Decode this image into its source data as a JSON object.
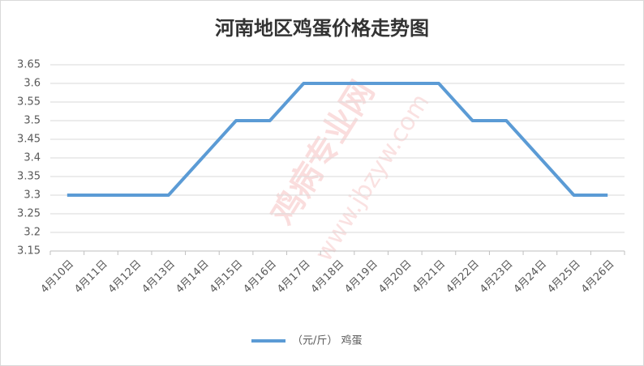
{
  "chart_data": {
    "type": "line",
    "title": "河南地区鸡蛋价格走势图",
    "watermark": [
      "鸡病专业网",
      "www.jbzyw.com"
    ],
    "categories": [
      "4月10日",
      "4月11日",
      "4月12日",
      "4月13日",
      "4月14日",
      "4月15日",
      "4月16日",
      "4月17日",
      "4月18日",
      "4月19日",
      "4月20日",
      "4月21日",
      "4月22日",
      "4月23日",
      "4月24日",
      "4月25日",
      "4月26日"
    ],
    "series": [
      {
        "name": "（元/斤） 鸡蛋",
        "color": "#5b9bd5",
        "values": [
          3.3,
          3.3,
          3.3,
          3.3,
          3.4,
          3.5,
          3.5,
          3.6,
          3.6,
          3.6,
          3.6,
          3.6,
          3.5,
          3.5,
          3.4,
          3.3,
          3.3
        ]
      }
    ],
    "ylim": [
      3.15,
      3.65
    ],
    "yticks": [
      3.15,
      3.2,
      3.25,
      3.3,
      3.35,
      3.4,
      3.45,
      3.5,
      3.55,
      3.6,
      3.65
    ],
    "grid": true,
    "legend": "bottom"
  }
}
